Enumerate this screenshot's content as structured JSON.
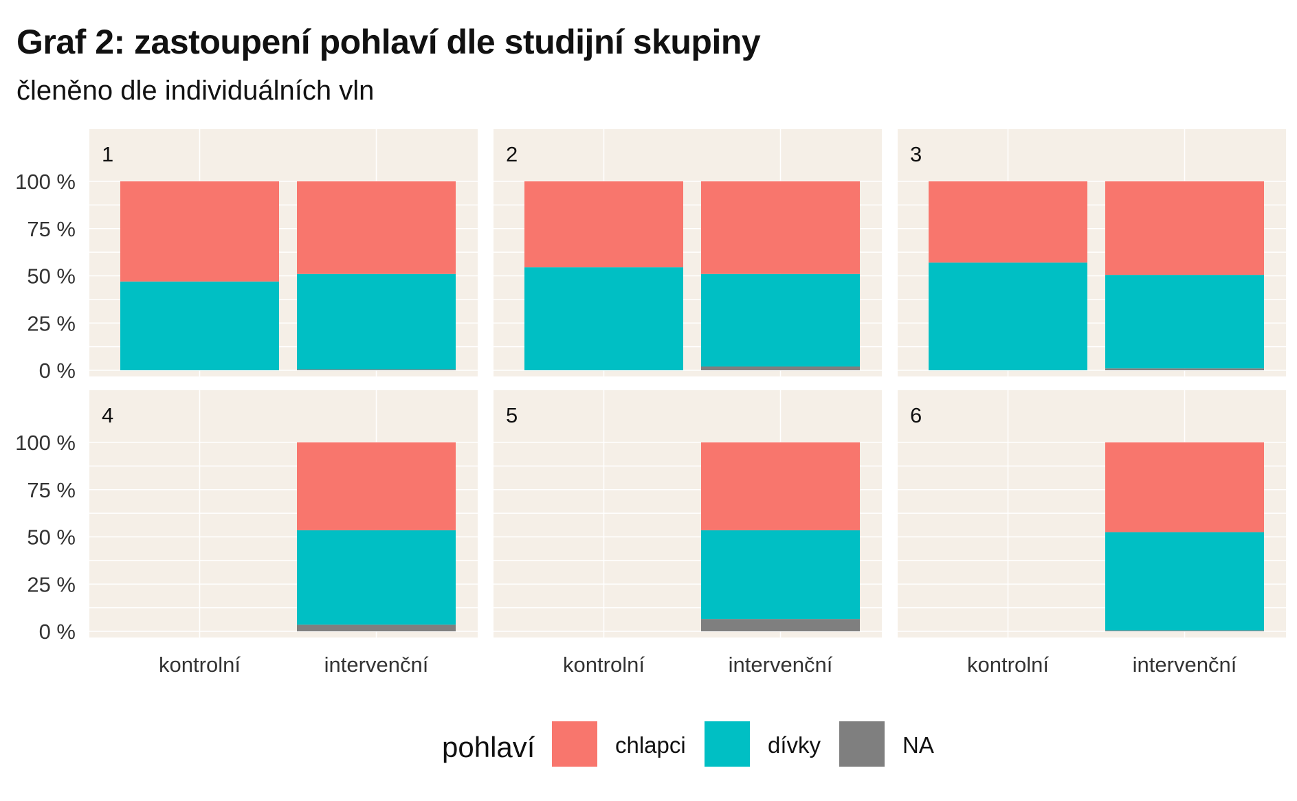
{
  "title": "Graf 2: zastoupení pohlaví dle studijní skupiny",
  "subtitle": "členěno dle individuálních vln",
  "colors": {
    "chlapci": "#f8766d",
    "divky": "#00bfc4",
    "NA": "#7f7f7f"
  },
  "legend": {
    "title": "pohlaví",
    "items": [
      {
        "label": "chlapci",
        "color": "#f8766d"
      },
      {
        "label": "dívky",
        "color": "#00bfc4"
      },
      {
        "label": "NA",
        "color": "#7f7f7f"
      }
    ]
  },
  "chart_data": {
    "type": "bar",
    "stacked": "percent",
    "categories": [
      "kontrolní",
      "intervenční"
    ],
    "y_ticks": [
      "0 %",
      "25 %",
      "50 %",
      "75 %",
      "100 %"
    ],
    "ylim": [
      0,
      1
    ],
    "legend_position": "bottom",
    "facets": [
      {
        "label": "1",
        "bars": [
          {
            "category": "kontrolní",
            "NA": 0.0,
            "divky": 0.47,
            "chlapci": 0.53
          },
          {
            "category": "intervenční",
            "NA": 0.005,
            "divky": 0.505,
            "chlapci": 0.49
          }
        ]
      },
      {
        "label": "2",
        "bars": [
          {
            "category": "kontrolní",
            "NA": 0.0,
            "divky": 0.545,
            "chlapci": 0.455
          },
          {
            "category": "intervenční",
            "NA": 0.02,
            "divky": 0.49,
            "chlapci": 0.49
          }
        ]
      },
      {
        "label": "3",
        "bars": [
          {
            "category": "kontrolní",
            "NA": 0.0,
            "divky": 0.57,
            "chlapci": 0.43
          },
          {
            "category": "intervenční",
            "NA": 0.01,
            "divky": 0.495,
            "chlapci": 0.495
          }
        ]
      },
      {
        "label": "4",
        "bars": [
          {
            "category": "kontrolní",
            "NA": 0.0,
            "divky": 0.0,
            "chlapci": 0.0
          },
          {
            "category": "intervenční",
            "NA": 0.035,
            "divky": 0.5,
            "chlapci": 0.465
          }
        ]
      },
      {
        "label": "5",
        "bars": [
          {
            "category": "kontrolní",
            "NA": 0.0,
            "divky": 0.0,
            "chlapci": 0.0
          },
          {
            "category": "intervenční",
            "NA": 0.065,
            "divky": 0.47,
            "chlapci": 0.465
          }
        ]
      },
      {
        "label": "6",
        "bars": [
          {
            "category": "kontrolní",
            "NA": 0.0,
            "divky": 0.0,
            "chlapci": 0.0
          },
          {
            "category": "intervenční",
            "NA": 0.005,
            "divky": 0.52,
            "chlapci": 0.475
          }
        ]
      }
    ]
  }
}
